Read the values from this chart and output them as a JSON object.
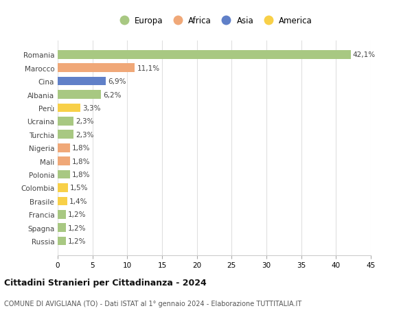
{
  "countries": [
    "Romania",
    "Marocco",
    "Cina",
    "Albania",
    "Perù",
    "Ucraina",
    "Turchia",
    "Nigeria",
    "Mali",
    "Polonia",
    "Colombia",
    "Brasile",
    "Francia",
    "Spagna",
    "Russia"
  ],
  "values": [
    42.1,
    11.1,
    6.9,
    6.2,
    3.3,
    2.3,
    2.3,
    1.8,
    1.8,
    1.8,
    1.5,
    1.4,
    1.2,
    1.2,
    1.2
  ],
  "labels": [
    "42,1%",
    "11,1%",
    "6,9%",
    "6,2%",
    "3,3%",
    "2,3%",
    "2,3%",
    "1,8%",
    "1,8%",
    "1,8%",
    "1,5%",
    "1,4%",
    "1,2%",
    "1,2%",
    "1,2%"
  ],
  "continents": [
    "Europa",
    "Africa",
    "Asia",
    "Europa",
    "America",
    "Europa",
    "Europa",
    "Africa",
    "Africa",
    "Europa",
    "America",
    "America",
    "Europa",
    "Europa",
    "Europa"
  ],
  "colors": {
    "Europa": "#a8c882",
    "Africa": "#f0a878",
    "Asia": "#6080c8",
    "America": "#f8d048"
  },
  "legend_order": [
    "Europa",
    "Africa",
    "Asia",
    "America"
  ],
  "title": "Cittadini Stranieri per Cittadinanza - 2024",
  "subtitle": "COMUNE DI AVIGLIANA (TO) - Dati ISTAT al 1° gennaio 2024 - Elaborazione TUTTITALIA.IT",
  "xlim": [
    0,
    45
  ],
  "xticks": [
    0,
    5,
    10,
    15,
    20,
    25,
    30,
    35,
    40,
    45
  ],
  "background_color": "#ffffff",
  "grid_color": "#e0e0e0"
}
